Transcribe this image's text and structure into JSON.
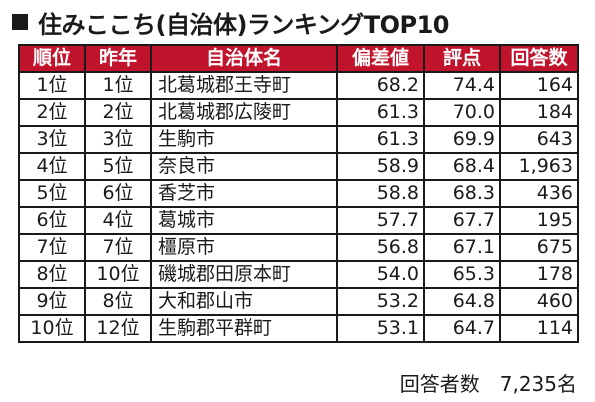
{
  "title": "住みここち(自治体)ランキングTOP10",
  "colors": {
    "header_bg": "#c1132b"
  },
  "table": {
    "headers": [
      "順位",
      "昨年",
      "自治体名",
      "偏差値",
      "評点",
      "回答数"
    ],
    "rows": [
      [
        "1位",
        "1位",
        "北葛城郡王寺町",
        "68.2",
        "74.4",
        "164"
      ],
      [
        "2位",
        "2位",
        "北葛城郡広陵町",
        "61.3",
        "70.0",
        "184"
      ],
      [
        "3位",
        "3位",
        "生駒市",
        "61.3",
        "69.9",
        "643"
      ],
      [
        "4位",
        "5位",
        "奈良市",
        "58.9",
        "68.4",
        "1,963"
      ],
      [
        "5位",
        "6位",
        "香芝市",
        "58.8",
        "68.3",
        "436"
      ],
      [
        "6位",
        "4位",
        "葛城市",
        "57.7",
        "67.7",
        "195"
      ],
      [
        "7位",
        "7位",
        "橿原市",
        "56.8",
        "67.1",
        "675"
      ],
      [
        "8位",
        "10位",
        "磯城郡田原本町",
        "54.0",
        "65.3",
        "178"
      ],
      [
        "9位",
        "8位",
        "大和郡山市",
        "53.2",
        "64.8",
        "460"
      ],
      [
        "10位",
        "12位",
        "生駒郡平群町",
        "53.1",
        "64.7",
        "114"
      ]
    ]
  },
  "footer": "回答者数　7,235名"
}
